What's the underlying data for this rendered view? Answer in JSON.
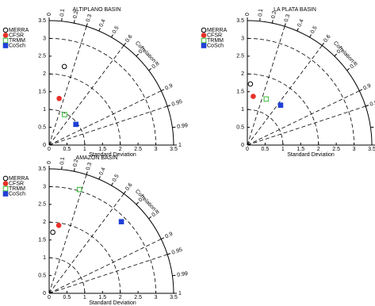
{
  "chart_data": [
    {
      "type": "taylor",
      "title": "ALTIPLANO BASIN",
      "xlabel": "Standard Deviation",
      "arc_label": "Correlation",
      "rlim": [
        0,
        3.5
      ],
      "rticks": [
        0,
        0.5,
        1,
        1.5,
        2,
        2.5,
        3,
        3.5
      ],
      "corr_ticks": [
        0,
        0.1,
        0.2,
        0.3,
        0.4,
        0.5,
        0.6,
        0.7,
        0.8,
        0.9,
        0.95,
        0.99,
        1
      ],
      "corr_grid": [
        0.3,
        0.6,
        0.9,
        0.95
      ],
      "std_grid": [
        1,
        2,
        3
      ],
      "series": [
        {
          "name": "MERRA",
          "color": "#000000",
          "marker": "circle",
          "filled": false,
          "values": [
            2.25
          ],
          "correlation": [
            0.19
          ]
        },
        {
          "name": "CFSR",
          "color": "#e8312b",
          "marker": "circle",
          "filled": true,
          "values": [
            1.34
          ],
          "correlation": [
            0.21
          ]
        },
        {
          "name": "TRMM",
          "color": "#33bb33",
          "marker": "square",
          "filled": false,
          "values": [
            0.96
          ],
          "correlation": [
            0.45
          ]
        },
        {
          "name": "CoSch",
          "color": "#1f3fd6",
          "marker": "square",
          "filled": true,
          "values": [
            0.95
          ],
          "correlation": [
            0.79
          ]
        }
      ]
    },
    {
      "type": "taylor",
      "title": "LA PLATA BASIN",
      "xlabel": "Standard Deviation",
      "arc_label": "Correlation",
      "rlim": [
        0,
        3.5
      ],
      "rticks": [
        0,
        0.5,
        1,
        1.5,
        2,
        2.5,
        3,
        3.5
      ],
      "corr_ticks": [
        0,
        0.1,
        0.2,
        0.3,
        0.4,
        0.5,
        0.6,
        0.7,
        0.8,
        0.9,
        0.95,
        0.99,
        1
      ],
      "corr_grid": [
        0.3,
        0.6,
        0.9,
        0.95
      ],
      "std_grid": [
        1,
        2,
        3
      ],
      "series": [
        {
          "name": "MERRA",
          "color": "#000000",
          "marker": "circle",
          "filled": false,
          "values": [
            1.72
          ],
          "correlation": [
            0.05
          ]
        },
        {
          "name": "CFSR",
          "color": "#e8312b",
          "marker": "circle",
          "filled": true,
          "values": [
            1.38
          ],
          "correlation": [
            0.12
          ]
        },
        {
          "name": "TRMM",
          "color": "#33bb33",
          "marker": "square",
          "filled": false,
          "values": [
            1.4
          ],
          "correlation": [
            0.38
          ]
        },
        {
          "name": "CoSch",
          "color": "#1f3fd6",
          "marker": "square",
          "filled": true,
          "values": [
            1.46
          ],
          "correlation": [
            0.64
          ]
        }
      ]
    },
    {
      "type": "taylor",
      "title": "AMAZON BASIN",
      "xlabel": "Standard Deviation",
      "arc_label": "Correlation",
      "rlim": [
        0,
        3.5
      ],
      "rticks": [
        0,
        0.5,
        1,
        1.5,
        2,
        2.5,
        3,
        3.5
      ],
      "corr_ticks": [
        0,
        0.1,
        0.2,
        0.3,
        0.4,
        0.5,
        0.6,
        0.7,
        0.8,
        0.9,
        0.95,
        0.99,
        1
      ],
      "corr_grid": [
        0.3,
        0.6,
        0.9,
        0.95
      ],
      "std_grid": [
        1,
        2,
        3
      ],
      "series": [
        {
          "name": "MERRA",
          "color": "#000000",
          "marker": "circle",
          "filled": false,
          "values": [
            1.72
          ],
          "correlation": [
            0.06
          ]
        },
        {
          "name": "CFSR",
          "color": "#e8312b",
          "marker": "circle",
          "filled": true,
          "values": [
            1.93
          ],
          "correlation": [
            0.14
          ]
        },
        {
          "name": "TRMM",
          "color": "#33bb33",
          "marker": "square",
          "filled": false,
          "values": [
            3.04
          ],
          "correlation": [
            0.28
          ]
        },
        {
          "name": "CoSch",
          "color": "#1f3fd6",
          "marker": "square",
          "filled": true,
          "values": [
            2.86
          ],
          "correlation": [
            0.71
          ]
        }
      ]
    }
  ]
}
